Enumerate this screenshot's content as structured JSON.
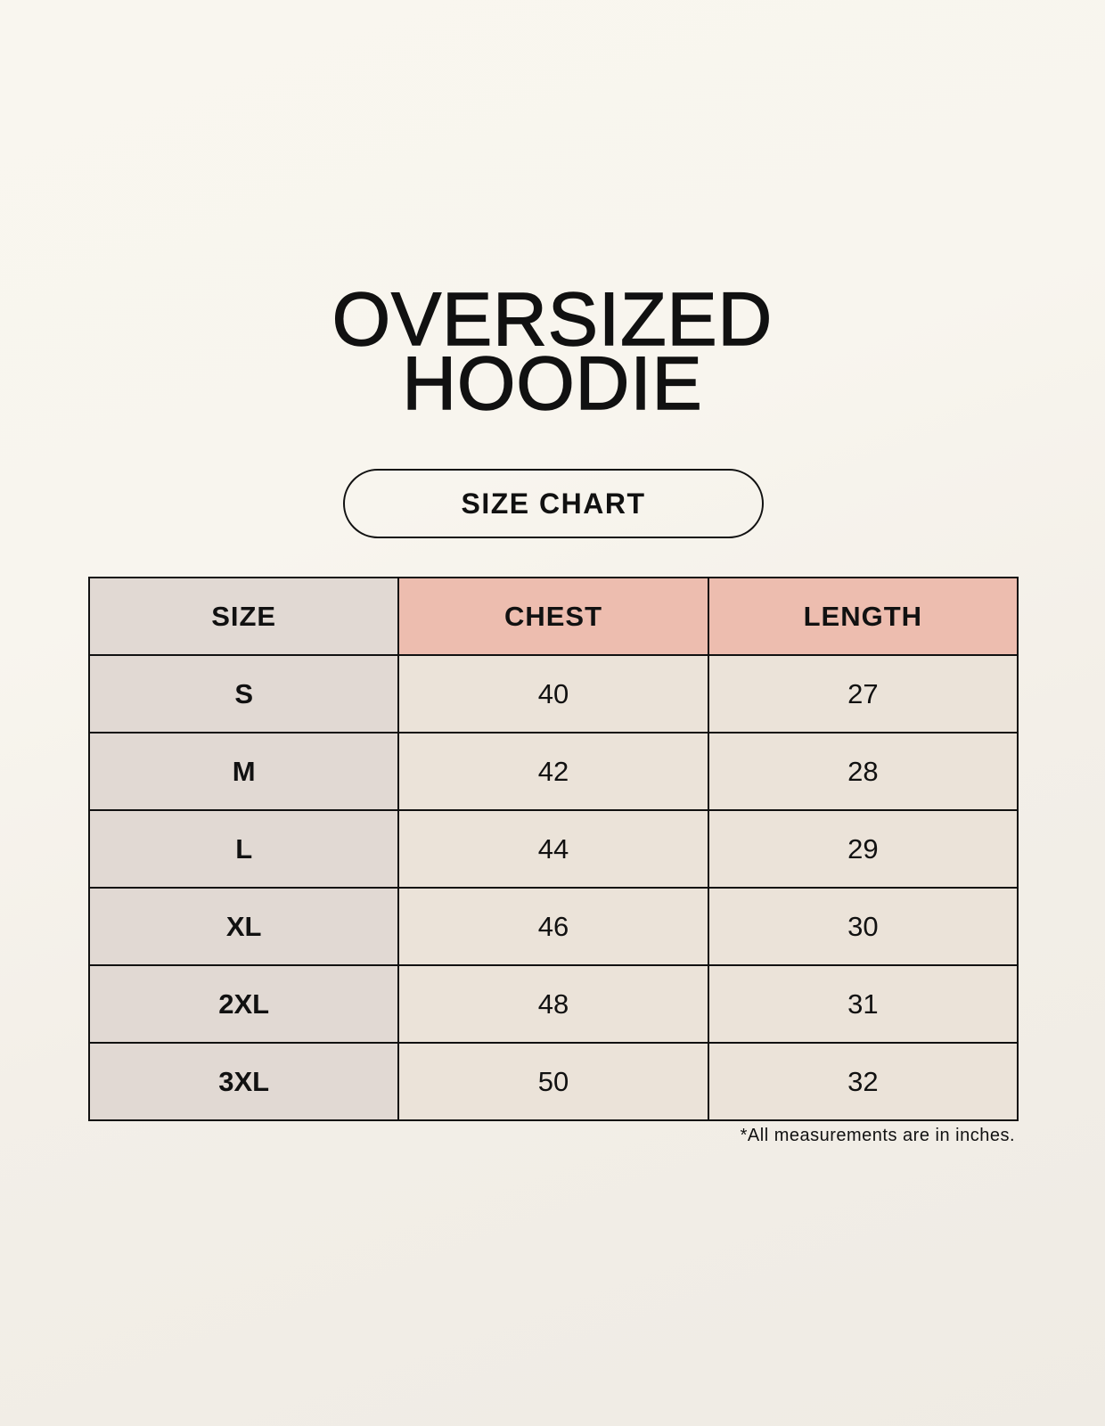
{
  "title": {
    "line1": "OVERSIZED",
    "line2": "HOODIE"
  },
  "subtitle": "SIZE CHART",
  "table": {
    "headers": [
      "SIZE",
      "CHEST",
      "LENGTH"
    ],
    "rows": [
      [
        "S",
        "40",
        "27"
      ],
      [
        "M",
        "42",
        "28"
      ],
      [
        "L",
        "44",
        "29"
      ],
      [
        "XL",
        "46",
        "30"
      ],
      [
        "2XL",
        "48",
        "31"
      ],
      [
        "3XL",
        "50",
        "32"
      ]
    ]
  },
  "footnote": "*All measurements are in inches.",
  "colors": {
    "size_column": "#e1d9d3",
    "header_accent": "#edbdaf",
    "value_cells": "#ebe3d9",
    "background": "#f8f5ee"
  }
}
